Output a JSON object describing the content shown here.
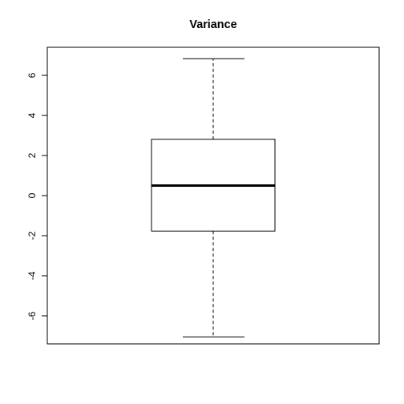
{
  "chart_data": {
    "type": "boxplot",
    "title": "Variance",
    "xlabel": "",
    "ylabel": "",
    "ylim": [
      -7.4,
      7.4
    ],
    "yticks": [
      -6,
      -4,
      -2,
      0,
      2,
      4,
      6
    ],
    "ytick_labels": [
      "-6",
      "-4",
      "-2",
      "0",
      "2",
      "4",
      "6"
    ],
    "box": {
      "whisker_low": -7.05,
      "q1": -1.77,
      "median": 0.5,
      "q3": 2.81,
      "whisker_high": 6.83
    },
    "grid": false,
    "legend": "none",
    "colors": {
      "stroke": "#000000",
      "background": "#ffffff"
    }
  }
}
